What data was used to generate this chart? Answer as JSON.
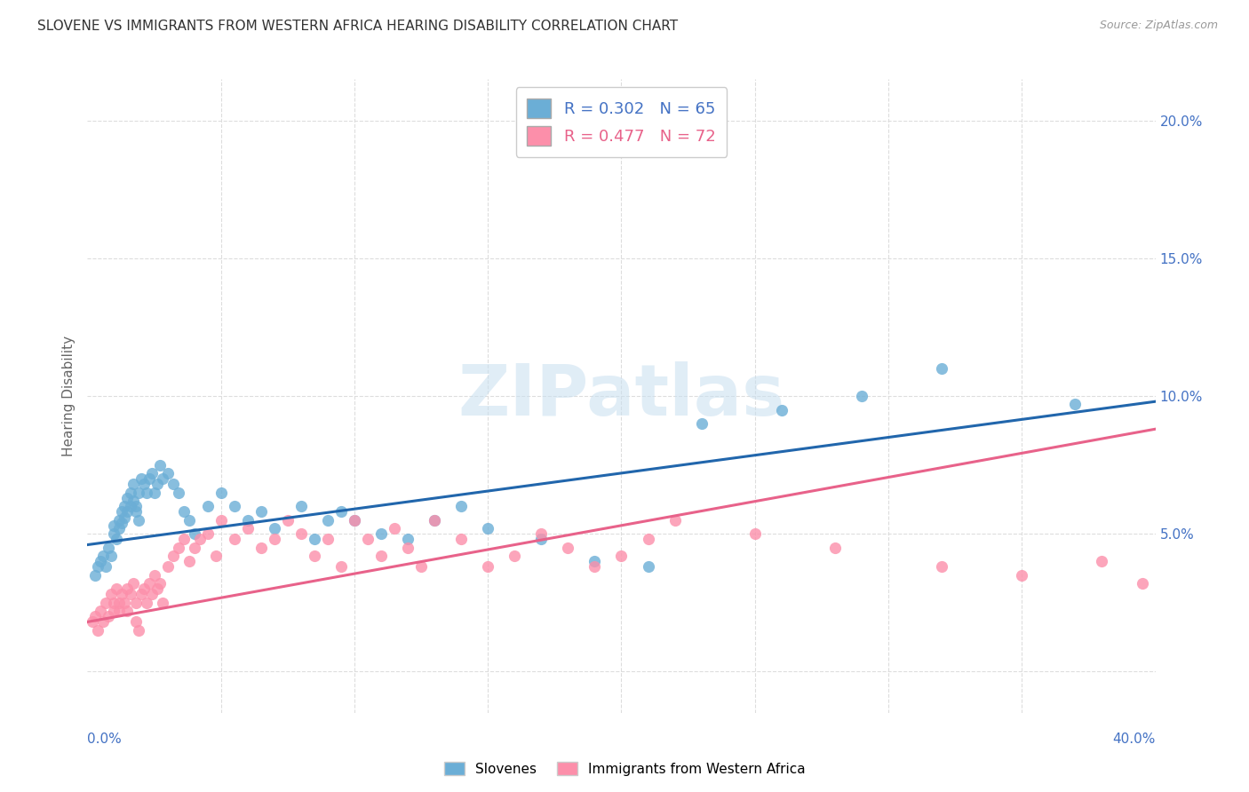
{
  "title": "SLOVENE VS IMMIGRANTS FROM WESTERN AFRICA HEARING DISABILITY CORRELATION CHART",
  "source": "Source: ZipAtlas.com",
  "ylabel": "Hearing Disability",
  "ytick_values": [
    0.0,
    0.05,
    0.1,
    0.15,
    0.2
  ],
  "xlim": [
    0.0,
    0.4
  ],
  "ylim": [
    -0.015,
    0.215
  ],
  "legend_label1": "Slovenes",
  "legend_label2": "Immigrants from Western Africa",
  "R1": 0.302,
  "N1": 65,
  "R2": 0.477,
  "N2": 72,
  "color1": "#6baed6",
  "color2": "#fc8faa",
  "trendline1_x": [
    0.0,
    0.4
  ],
  "trendline1_y": [
    0.046,
    0.098
  ],
  "trendline2_x": [
    0.0,
    0.4
  ],
  "trendline2_y": [
    0.018,
    0.088
  ],
  "trendline1_color": "#2166ac",
  "trendline2_color": "#e8628a",
  "watermark": "ZIPatlas",
  "background_color": "#ffffff",
  "grid_color": "#dddddd",
  "axis_label_color": "#4472c4",
  "slovenes_x": [
    0.003,
    0.004,
    0.005,
    0.006,
    0.007,
    0.008,
    0.009,
    0.01,
    0.01,
    0.011,
    0.012,
    0.012,
    0.013,
    0.013,
    0.014,
    0.014,
    0.015,
    0.015,
    0.016,
    0.016,
    0.017,
    0.017,
    0.018,
    0.018,
    0.019,
    0.019,
    0.02,
    0.021,
    0.022,
    0.023,
    0.024,
    0.025,
    0.026,
    0.027,
    0.028,
    0.03,
    0.032,
    0.034,
    0.036,
    0.038,
    0.04,
    0.045,
    0.05,
    0.055,
    0.06,
    0.065,
    0.07,
    0.08,
    0.085,
    0.09,
    0.095,
    0.1,
    0.11,
    0.12,
    0.13,
    0.14,
    0.15,
    0.17,
    0.19,
    0.21,
    0.23,
    0.26,
    0.29,
    0.32,
    0.37
  ],
  "slovenes_y": [
    0.035,
    0.038,
    0.04,
    0.042,
    0.038,
    0.045,
    0.042,
    0.05,
    0.053,
    0.048,
    0.055,
    0.052,
    0.058,
    0.054,
    0.06,
    0.056,
    0.063,
    0.058,
    0.065,
    0.06,
    0.068,
    0.062,
    0.06,
    0.058,
    0.055,
    0.065,
    0.07,
    0.068,
    0.065,
    0.07,
    0.072,
    0.065,
    0.068,
    0.075,
    0.07,
    0.072,
    0.068,
    0.065,
    0.058,
    0.055,
    0.05,
    0.06,
    0.065,
    0.06,
    0.055,
    0.058,
    0.052,
    0.06,
    0.048,
    0.055,
    0.058,
    0.055,
    0.05,
    0.048,
    0.055,
    0.06,
    0.052,
    0.048,
    0.04,
    0.038,
    0.09,
    0.095,
    0.1,
    0.11,
    0.097
  ],
  "immigrants_x": [
    0.002,
    0.003,
    0.004,
    0.005,
    0.006,
    0.007,
    0.008,
    0.009,
    0.01,
    0.01,
    0.011,
    0.012,
    0.012,
    0.013,
    0.014,
    0.015,
    0.015,
    0.016,
    0.017,
    0.018,
    0.018,
    0.019,
    0.02,
    0.021,
    0.022,
    0.023,
    0.024,
    0.025,
    0.026,
    0.027,
    0.028,
    0.03,
    0.032,
    0.034,
    0.036,
    0.038,
    0.04,
    0.042,
    0.045,
    0.048,
    0.05,
    0.055,
    0.06,
    0.065,
    0.07,
    0.075,
    0.08,
    0.085,
    0.09,
    0.095,
    0.1,
    0.105,
    0.11,
    0.115,
    0.12,
    0.125,
    0.13,
    0.14,
    0.15,
    0.16,
    0.17,
    0.18,
    0.19,
    0.2,
    0.21,
    0.22,
    0.25,
    0.28,
    0.32,
    0.35,
    0.38,
    0.395
  ],
  "immigrants_y": [
    0.018,
    0.02,
    0.015,
    0.022,
    0.018,
    0.025,
    0.02,
    0.028,
    0.025,
    0.022,
    0.03,
    0.025,
    0.022,
    0.028,
    0.025,
    0.03,
    0.022,
    0.028,
    0.032,
    0.025,
    0.018,
    0.015,
    0.028,
    0.03,
    0.025,
    0.032,
    0.028,
    0.035,
    0.03,
    0.032,
    0.025,
    0.038,
    0.042,
    0.045,
    0.048,
    0.04,
    0.045,
    0.048,
    0.05,
    0.042,
    0.055,
    0.048,
    0.052,
    0.045,
    0.048,
    0.055,
    0.05,
    0.042,
    0.048,
    0.038,
    0.055,
    0.048,
    0.042,
    0.052,
    0.045,
    0.038,
    0.055,
    0.048,
    0.038,
    0.042,
    0.05,
    0.045,
    0.038,
    0.042,
    0.048,
    0.055,
    0.05,
    0.045,
    0.038,
    0.035,
    0.04,
    0.032
  ]
}
